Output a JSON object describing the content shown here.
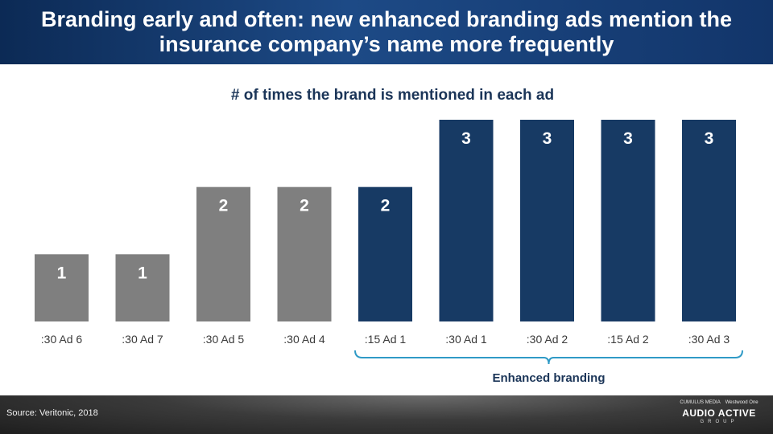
{
  "header": {
    "title": "Branding early and often: new enhanced branding ads mention the insurance company’s name more frequently"
  },
  "chart_data": {
    "type": "bar",
    "title": "# of times the brand is mentioned in each ad",
    "xlabel": "",
    "ylabel": "",
    "categories": [
      ":30 Ad 6",
      ":30 Ad 7",
      ":30 Ad 5",
      ":30 Ad 4",
      ":15 Ad 1",
      ":30 Ad 1",
      ":30 Ad 2",
      ":15 Ad 2",
      ":30 Ad 3"
    ],
    "values": [
      1,
      1,
      2,
      2,
      2,
      3,
      3,
      3,
      3
    ],
    "groups": [
      "standard",
      "standard",
      "standard",
      "standard",
      "enhanced",
      "enhanced",
      "enhanced",
      "enhanced",
      "enhanced"
    ],
    "colors": {
      "standard": "#7f7f7f",
      "enhanced": "#173a64"
    },
    "ylim": [
      0,
      3
    ],
    "grid": false,
    "data_labels": true,
    "bracket": {
      "label": "Enhanced branding",
      "from": ":15 Ad 1",
      "to": ":30 Ad 3",
      "color": "#2f9ac6"
    }
  },
  "footer": {
    "source": "Source: Veritonic, 2018",
    "logo_top_left": "CUMULUS MEDIA",
    "logo_top_right": "Westwood One",
    "logo_main": "AUDIO ACTIVE",
    "logo_sub": "GROUP"
  }
}
